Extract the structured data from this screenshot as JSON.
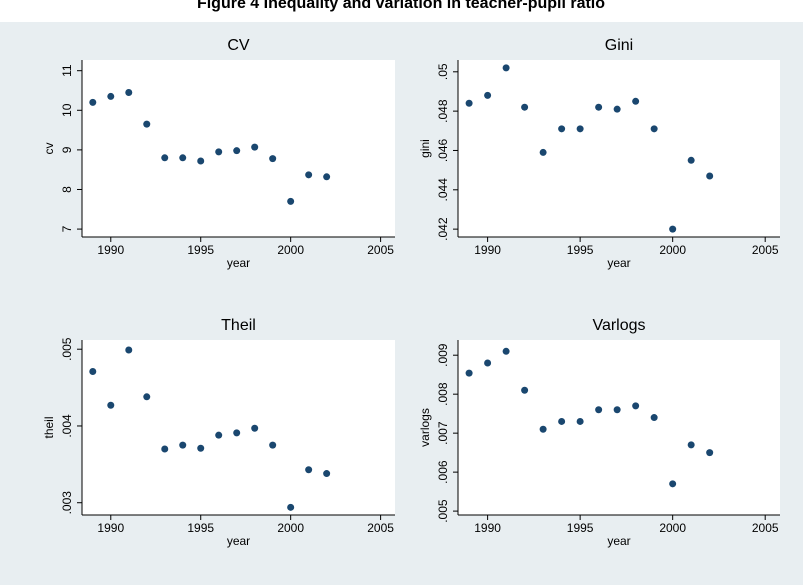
{
  "title": "Figure 4 Inequality and variation in teacher-pupil ratio",
  "chart_data": [
    {
      "type": "scatter",
      "title": "CV",
      "xlabel": "year",
      "ylabel": "cv",
      "color": "#1a476f",
      "x": [
        1989,
        1990,
        1991,
        1992,
        1993,
        1994,
        1995,
        1996,
        1997,
        1998,
        1999,
        2000,
        2001,
        2002
      ],
      "values": [
        10.2,
        10.35,
        10.45,
        9.65,
        8.8,
        8.8,
        8.72,
        8.95,
        8.98,
        9.07,
        8.78,
        7.7,
        8.37,
        8.32
      ],
      "xlim": [
        1988.4,
        2005.8
      ],
      "xticks": [
        1990,
        1995,
        2000,
        2005
      ],
      "ylim": [
        6.8,
        11.27
      ],
      "yticks": [
        7,
        8,
        9,
        10,
        11
      ]
    },
    {
      "type": "scatter",
      "title": "Gini",
      "xlabel": "year",
      "ylabel": "gini",
      "color": "#1a476f",
      "x": [
        1989,
        1990,
        1991,
        1992,
        1993,
        1994,
        1995,
        1996,
        1997,
        1998,
        1999,
        2000,
        2001,
        2002
      ],
      "values": [
        0.0484,
        0.0488,
        0.0502,
        0.0482,
        0.0459,
        0.0471,
        0.0471,
        0.0482,
        0.0481,
        0.0485,
        0.0471,
        0.042,
        0.0455,
        0.0447
      ],
      "xlim": [
        1988.4,
        2005.8
      ],
      "xticks": [
        1990,
        1995,
        2000,
        2005
      ],
      "ylim": [
        0.0416,
        0.0506
      ],
      "yticks": [
        {
          "value": 0.042,
          "label": ".042"
        },
        {
          "value": 0.044,
          "label": ".044"
        },
        {
          "value": 0.046,
          "label": ".046"
        },
        {
          "value": 0.048,
          "label": ".048"
        },
        {
          "value": 0.05,
          "label": ".05"
        }
      ]
    },
    {
      "type": "scatter",
      "title": "Theil",
      "xlabel": "year",
      "ylabel": "theil",
      "color": "#1a476f",
      "x": [
        1989,
        1990,
        1991,
        1992,
        1993,
        1994,
        1995,
        1996,
        1997,
        1998,
        1999,
        2000,
        2001,
        2002
      ],
      "values": [
        0.00471,
        0.00427,
        0.00499,
        0.00438,
        0.0037,
        0.00375,
        0.00371,
        0.00388,
        0.00391,
        0.00397,
        0.00375,
        0.00294,
        0.00343,
        0.00338
      ],
      "xlim": [
        1988.4,
        2005.8
      ],
      "xticks": [
        1990,
        1995,
        2000,
        2005
      ],
      "ylim": [
        0.00284,
        0.00512
      ],
      "yticks": [
        {
          "value": 0.003,
          "label": ".003"
        },
        {
          "value": 0.004,
          "label": ".004"
        },
        {
          "value": 0.005,
          "label": ".005"
        }
      ]
    },
    {
      "type": "scatter",
      "title": "Varlogs",
      "xlabel": "year",
      "ylabel": "varlogs",
      "color": "#1a476f",
      "x": [
        1989,
        1990,
        1991,
        1992,
        1993,
        1994,
        1995,
        1996,
        1997,
        1998,
        1999,
        2000,
        2001,
        2002
      ],
      "values": [
        0.00854,
        0.0088,
        0.0091,
        0.0081,
        0.0071,
        0.0073,
        0.0073,
        0.0076,
        0.0076,
        0.0077,
        0.0074,
        0.0057,
        0.0067,
        0.0065
      ],
      "xlim": [
        1988.4,
        2005.8
      ],
      "xticks": [
        1990,
        1995,
        2000,
        2005
      ],
      "ylim": [
        0.0049,
        0.00939
      ],
      "yticks": [
        {
          "value": 0.005,
          "label": ".005"
        },
        {
          "value": 0.006,
          "label": ".006"
        },
        {
          "value": 0.007,
          "label": ".007"
        },
        {
          "value": 0.008,
          "label": ".008"
        },
        {
          "value": 0.009,
          "label": ".009"
        }
      ]
    }
  ]
}
